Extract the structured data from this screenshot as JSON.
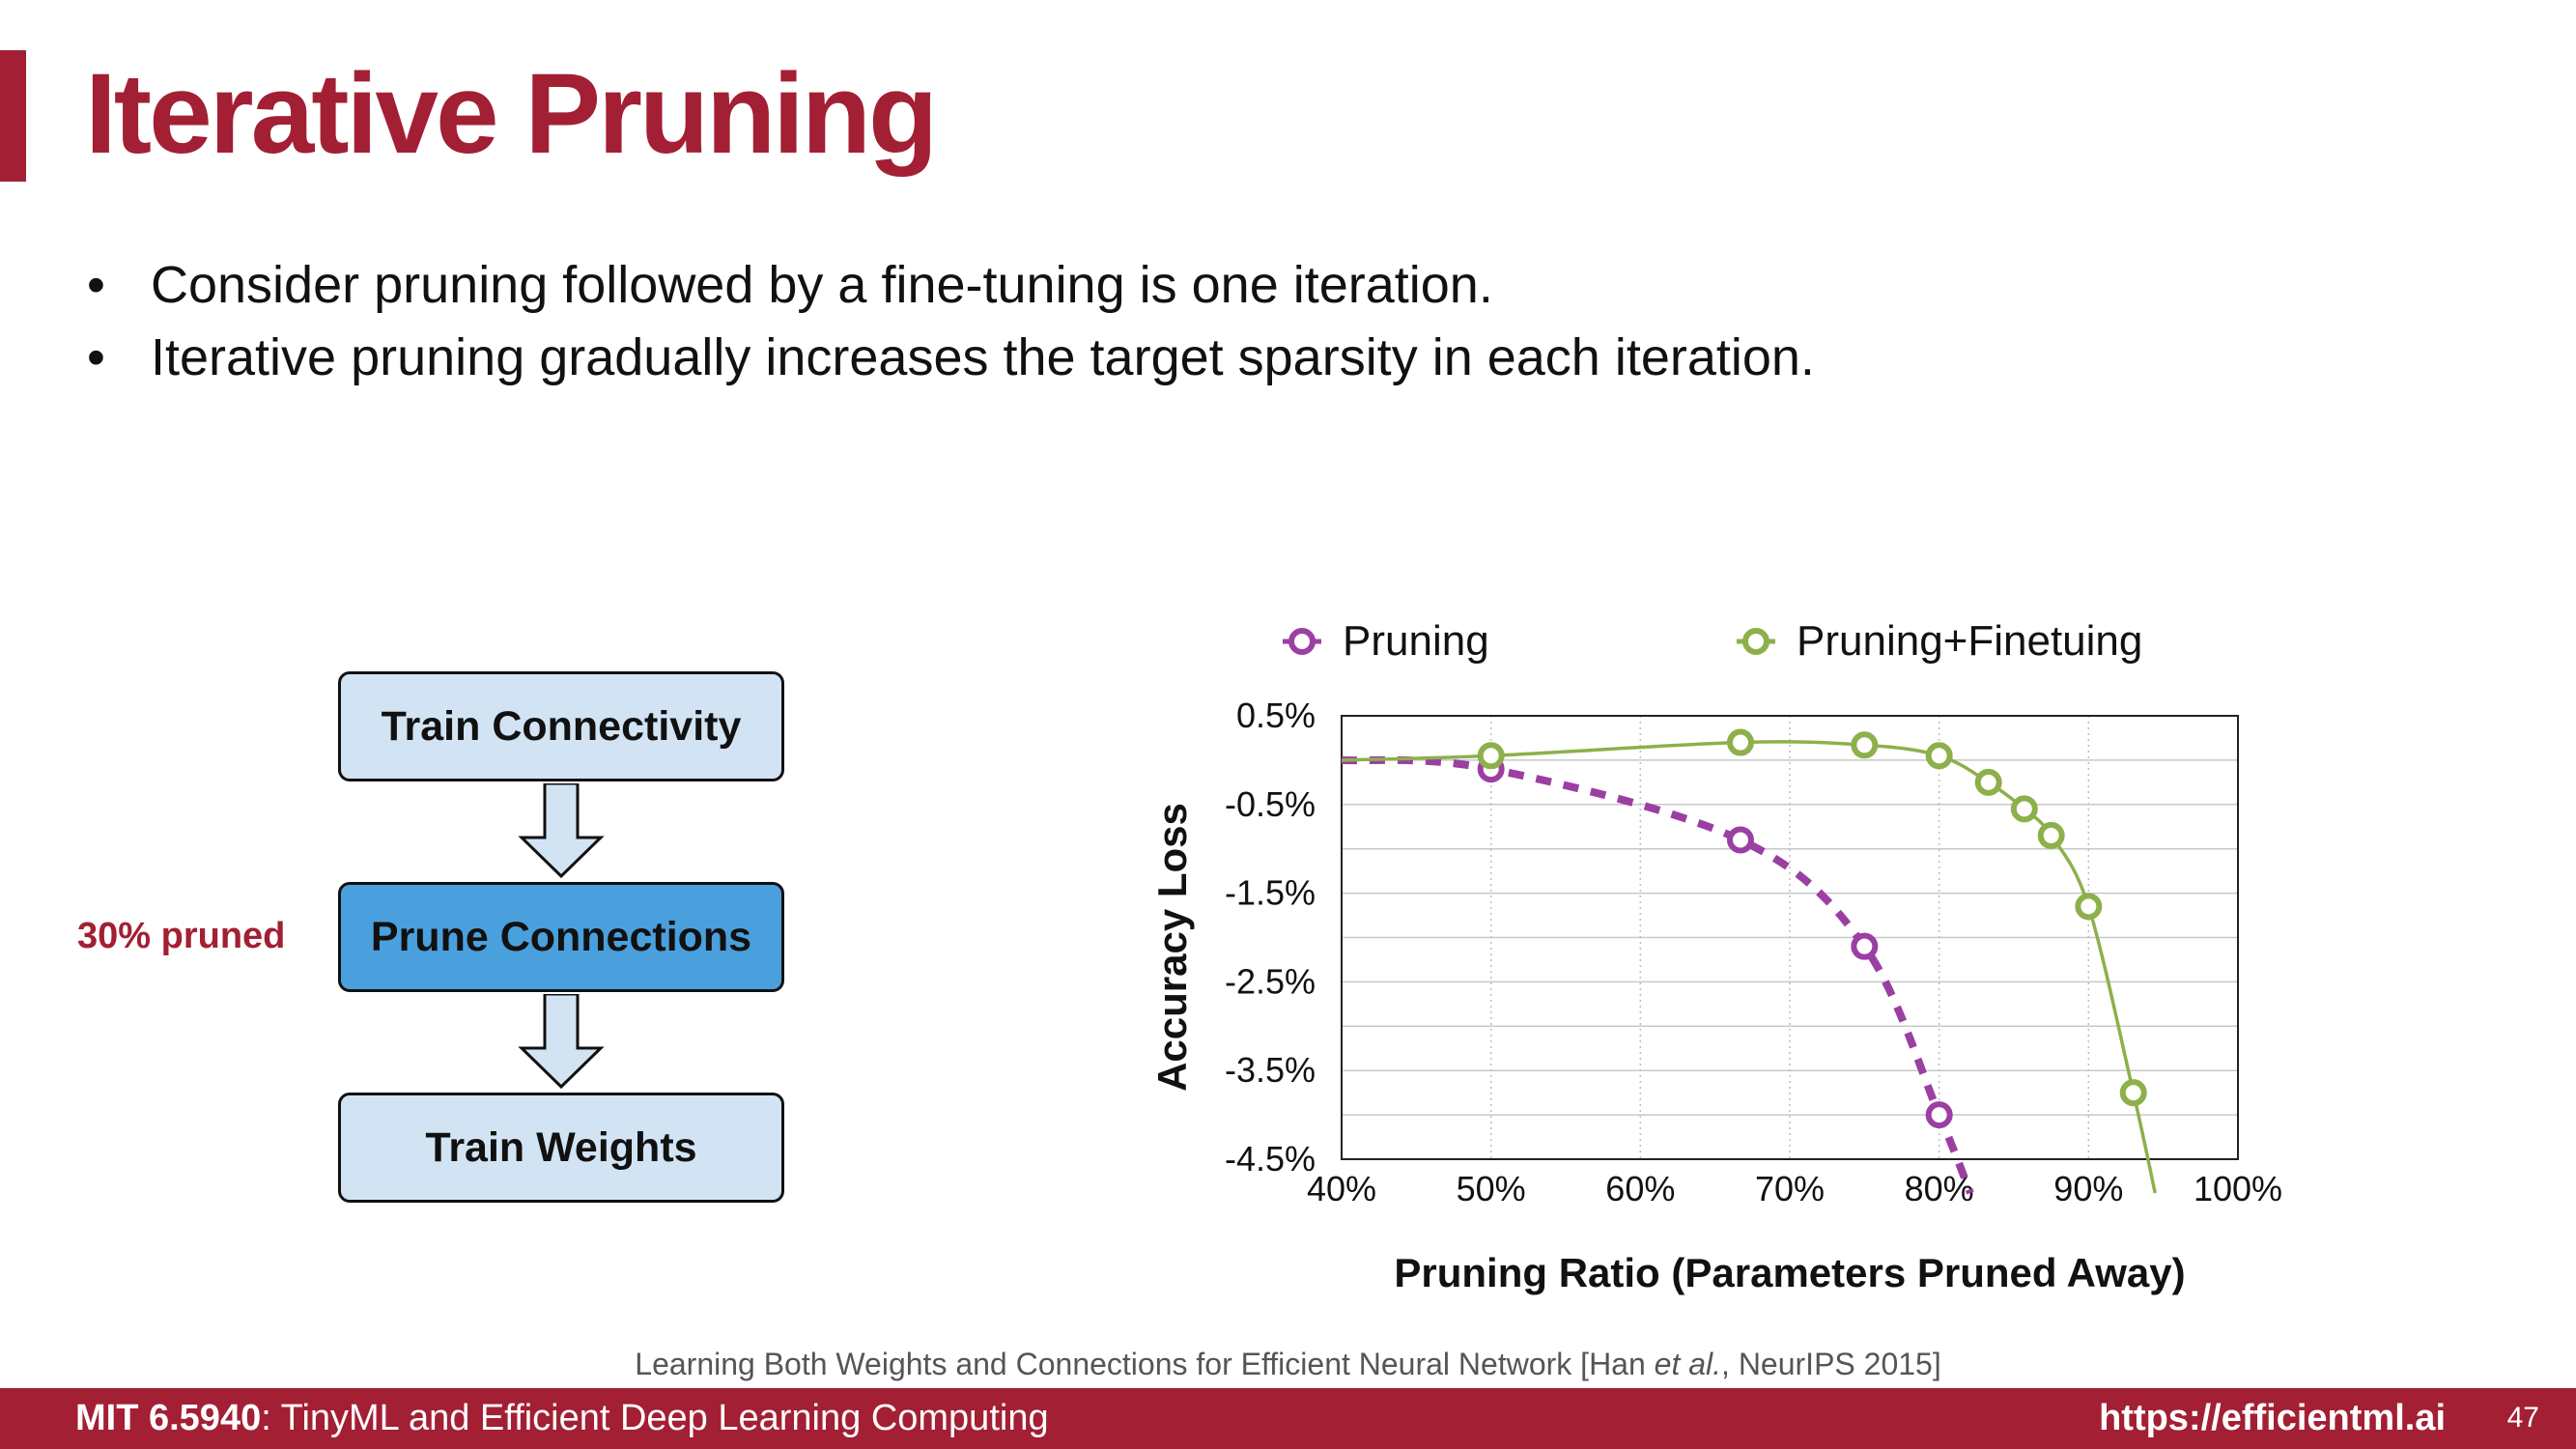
{
  "slide": {
    "title": "Iterative Pruning",
    "bullets": [
      "Consider pruning followed by a fine-tuning is one iteration.",
      "Iterative pruning gradually increases the target sparsity in each iteration."
    ],
    "bullet_glyph": "•"
  },
  "flow": {
    "step1": "Train Connectivity",
    "step2": "Prune Connections",
    "step3": "Train Weights",
    "side_label": "30% pruned"
  },
  "chart_data": {
    "type": "line",
    "xlabel": "Pruning Ratio (Parameters Pruned Away)",
    "ylabel": "Accuracy Loss",
    "xlim": [
      40,
      100
    ],
    "ylim": [
      -4.5,
      0.5
    ],
    "x_ticks": [
      "40%",
      "50%",
      "60%",
      "70%",
      "80%",
      "90%",
      "100%"
    ],
    "y_ticks": [
      "0.5%",
      "-0.5%",
      "-1.5%",
      "-2.5%",
      "-3.5%",
      "-4.5%"
    ],
    "grid": true,
    "legend_position": "top",
    "series": [
      {
        "name": "Pruning",
        "color": "#9b3fa3",
        "style": "dashed",
        "x": [
          40,
          50,
          66.7,
          75,
          80
        ],
        "y": [
          0.0,
          -0.1,
          -0.9,
          -2.1,
          -4.0
        ]
      },
      {
        "name": "Pruning+Finetuing",
        "color": "#8db04b",
        "style": "solid",
        "x": [
          40,
          50,
          66.7,
          75,
          80,
          83.3,
          85.7,
          87.5,
          90,
          93
        ],
        "y": [
          0.0,
          0.05,
          0.2,
          0.17,
          0.05,
          -0.25,
          -0.55,
          -0.85,
          -1.65,
          -3.75
        ]
      }
    ]
  },
  "citation": {
    "before": "Learning Both Weights and Connections for Efficient Neural Network [Han ",
    "italic": "et al.",
    "after": ", NeurIPS 2015]"
  },
  "footer": {
    "course_code": "MIT 6.5940",
    "course_title": ": TinyML and Efficient Deep Learning Computing",
    "url": "https://efficientml.ai",
    "page": "47"
  },
  "colors": {
    "brand": "#a31f34",
    "box_light": "#d2e4f4",
    "box_active": "#4aa0dd"
  }
}
